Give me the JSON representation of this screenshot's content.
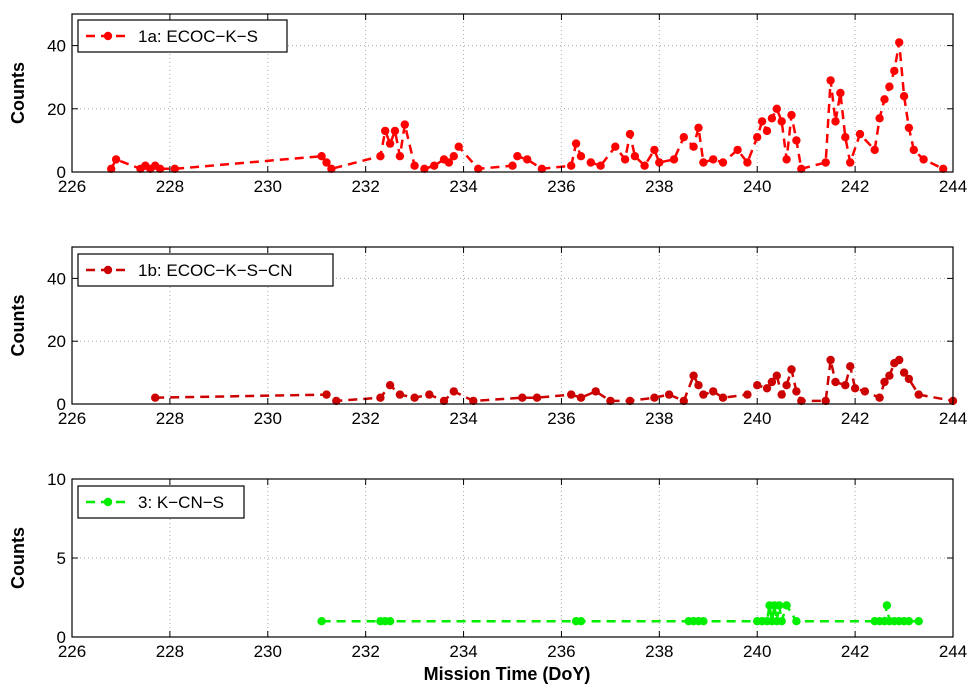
{
  "chart_data": [
    {
      "type": "line",
      "xlabel": "",
      "ylabel": "Counts",
      "xlim": [
        226,
        244
      ],
      "ylim": [
        0,
        50
      ],
      "xticks": [
        226,
        228,
        230,
        232,
        234,
        236,
        238,
        240,
        242,
        244
      ],
      "yticks": [
        0,
        20,
        40
      ],
      "grid": true,
      "legend_position": "top-left",
      "series": [
        {
          "name": "1a: ECOC−K−S",
          "color": "#ff0000",
          "x": [
            226.8,
            226.9,
            227.4,
            227.5,
            227.6,
            227.7,
            227.8,
            228.1,
            231.1,
            231.2,
            231.3,
            232.3,
            232.4,
            232.5,
            232.6,
            232.7,
            232.8,
            233.0,
            233.2,
            233.4,
            233.6,
            233.7,
            233.8,
            233.9,
            234.3,
            235.0,
            235.1,
            235.3,
            235.6,
            236.2,
            236.3,
            236.4,
            236.6,
            236.8,
            237.1,
            237.3,
            237.4,
            237.5,
            237.7,
            237.9,
            238.0,
            238.3,
            238.5,
            238.7,
            238.8,
            238.9,
            239.1,
            239.3,
            239.6,
            239.8,
            240.0,
            240.1,
            240.2,
            240.3,
            240.4,
            240.5,
            240.6,
            240.7,
            240.8,
            240.9,
            241.4,
            241.5,
            241.6,
            241.7,
            241.8,
            241.9,
            242.1,
            242.4,
            242.5,
            242.6,
            242.7,
            242.8,
            242.9,
            243.0,
            243.1,
            243.2,
            243.4,
            243.8
          ],
          "values": [
            1,
            4,
            1,
            2,
            1,
            2,
            1,
            1,
            5,
            3,
            1,
            5,
            13,
            9,
            13,
            5,
            15,
            2,
            1,
            2,
            4,
            3,
            5,
            8,
            1,
            2,
            5,
            4,
            1,
            2,
            9,
            5,
            3,
            2,
            8,
            4,
            12,
            5,
            2,
            7,
            3,
            4,
            11,
            8,
            14,
            3,
            4,
            3,
            7,
            3,
            11,
            16,
            13,
            17,
            20,
            16,
            4,
            18,
            10,
            1,
            3,
            29,
            16,
            25,
            11,
            3,
            12,
            7,
            17,
            23,
            27,
            32,
            41,
            24,
            14,
            7,
            4,
            1
          ]
        }
      ]
    },
    {
      "type": "line",
      "xlabel": "",
      "ylabel": "Counts",
      "xlim": [
        226,
        244
      ],
      "ylim": [
        0,
        50
      ],
      "xticks": [
        226,
        228,
        230,
        232,
        234,
        236,
        238,
        240,
        242,
        244
      ],
      "yticks": [
        0,
        20,
        40
      ],
      "grid": true,
      "legend_position": "top-left",
      "series": [
        {
          "name": "1b: ECOC−K−S−CN",
          "color": "#cc0000",
          "x": [
            227.7,
            231.2,
            231.4,
            232.3,
            232.5,
            232.7,
            233.0,
            233.3,
            233.6,
            233.8,
            234.2,
            235.2,
            235.5,
            236.2,
            236.4,
            236.7,
            237.0,
            237.4,
            237.9,
            238.2,
            238.5,
            238.7,
            238.8,
            238.9,
            239.1,
            239.3,
            239.8,
            240.0,
            240.2,
            240.3,
            240.4,
            240.5,
            240.6,
            240.7,
            240.8,
            240.9,
            241.4,
            241.5,
            241.6,
            241.8,
            241.9,
            242.0,
            242.2,
            242.5,
            242.6,
            242.7,
            242.8,
            242.9,
            243.0,
            243.1,
            243.3,
            244.0
          ],
          "values": [
            2,
            3,
            1,
            2,
            6,
            3,
            2,
            3,
            1,
            4,
            1,
            2,
            2,
            3,
            2,
            4,
            1,
            1,
            2,
            3,
            1,
            9,
            6,
            3,
            4,
            2,
            3,
            6,
            5,
            7,
            9,
            3,
            6,
            11,
            4,
            1,
            1,
            14,
            7,
            6,
            12,
            5,
            4,
            2,
            7,
            9,
            13,
            14,
            10,
            8,
            3,
            1
          ]
        }
      ]
    },
    {
      "type": "line",
      "xlabel": "Mission Time (DoY)",
      "ylabel": "Counts",
      "xlim": [
        226,
        244
      ],
      "ylim": [
        0,
        10
      ],
      "xticks": [
        226,
        228,
        230,
        232,
        234,
        236,
        238,
        240,
        242,
        244
      ],
      "yticks": [
        0,
        5,
        10
      ],
      "grid": true,
      "legend_position": "top-left",
      "series": [
        {
          "name": "3: K−CN−S",
          "color": "#00ee00",
          "x": [
            231.1,
            232.3,
            232.4,
            232.5,
            236.3,
            236.4,
            238.6,
            238.7,
            238.8,
            238.9,
            240.0,
            240.1,
            240.2,
            240.25,
            240.3,
            240.35,
            240.4,
            240.45,
            240.5,
            240.6,
            240.8,
            242.4,
            242.5,
            242.6,
            242.65,
            242.7,
            242.8,
            242.9,
            243.0,
            243.1,
            243.3
          ],
          "values": [
            1,
            1,
            1,
            1,
            1,
            1,
            1,
            1,
            1,
            1,
            1,
            1,
            1,
            2,
            1,
            2,
            1,
            2,
            1,
            2,
            1,
            1,
            1,
            1,
            2,
            1,
            1,
            1,
            1,
            1,
            1
          ]
        }
      ]
    }
  ]
}
